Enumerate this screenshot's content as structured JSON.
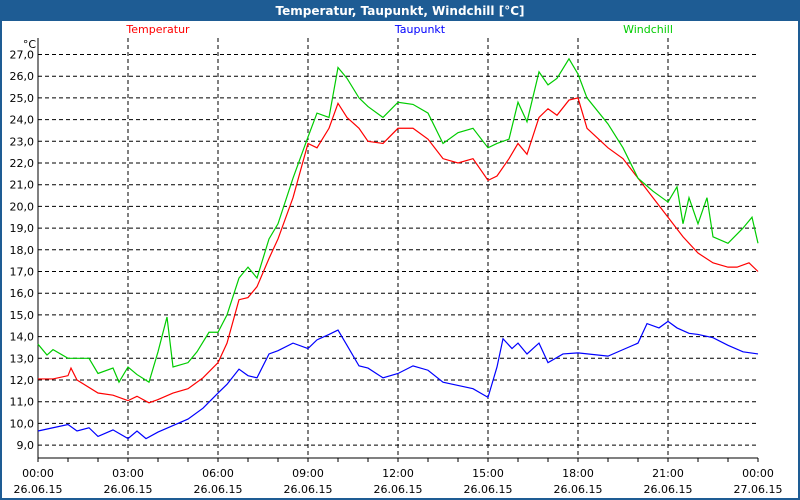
{
  "window_title": "Temperatur, Taupunkt, Windchill [°C]",
  "chart_data": {
    "type": "line",
    "title": "Temperatur, Taupunkt, Windchill [°C]",
    "ylabel": "°C",
    "ylim": [
      8.4,
      27.7
    ],
    "yticks": [
      9,
      10,
      11,
      12,
      13,
      14,
      15,
      16,
      17,
      18,
      19,
      20,
      21,
      22,
      23,
      24,
      25,
      26,
      27
    ],
    "ytick_labels": [
      "9,0",
      "10,0",
      "11,0",
      "12,0",
      "13,0",
      "14,0",
      "15,0",
      "16,0",
      "17,0",
      "18,0",
      "19,0",
      "20,0",
      "21,0",
      "22,0",
      "23,0",
      "24,0",
      "25,0",
      "26,0",
      "27,0"
    ],
    "xlim_hours": [
      0,
      24
    ],
    "xticks": [
      {
        "h": 0,
        "time": "00:00",
        "date": "26.06.15"
      },
      {
        "h": 3,
        "time": "03:00",
        "date": "26.06.15"
      },
      {
        "h": 6,
        "time": "06:00",
        "date": "26.06.15"
      },
      {
        "h": 9,
        "time": "09:00",
        "date": "26.06.15"
      },
      {
        "h": 12,
        "time": "12:00",
        "date": "26.06.15"
      },
      {
        "h": 15,
        "time": "15:00",
        "date": "26.06.15"
      },
      {
        "h": 18,
        "time": "18:00",
        "date": "26.06.15"
      },
      {
        "h": 21,
        "time": "21:00",
        "date": "26.06.15"
      },
      {
        "h": 24,
        "time": "00:00",
        "date": "27.06.15"
      }
    ],
    "grid": true,
    "legend_placement": "top",
    "series": [
      {
        "name": "Temperatur",
        "color": "#ff0000",
        "points": [
          [
            0,
            12.05
          ],
          [
            0.5,
            12.05
          ],
          [
            1,
            12.2
          ],
          [
            1.1,
            12.55
          ],
          [
            1.3,
            12.0
          ],
          [
            2,
            11.4
          ],
          [
            2.5,
            11.3
          ],
          [
            3,
            11.05
          ],
          [
            3.3,
            11.25
          ],
          [
            3.7,
            10.95
          ],
          [
            4,
            11.1
          ],
          [
            4.5,
            11.4
          ],
          [
            5,
            11.6
          ],
          [
            5.5,
            12.1
          ],
          [
            6,
            12.8
          ],
          [
            6.3,
            13.7
          ],
          [
            6.7,
            15.7
          ],
          [
            7,
            15.8
          ],
          [
            7.3,
            16.3
          ],
          [
            7.7,
            17.6
          ],
          [
            8,
            18.5
          ],
          [
            8.5,
            20.4
          ],
          [
            9,
            22.9
          ],
          [
            9.3,
            22.7
          ],
          [
            9.7,
            23.6
          ],
          [
            10,
            24.75
          ],
          [
            10.3,
            24.1
          ],
          [
            10.7,
            23.6
          ],
          [
            11,
            23.0
          ],
          [
            11.5,
            22.9
          ],
          [
            12,
            23.6
          ],
          [
            12.5,
            23.6
          ],
          [
            13,
            23.1
          ],
          [
            13.5,
            22.2
          ],
          [
            14,
            22.0
          ],
          [
            14.5,
            22.2
          ],
          [
            15,
            21.2
          ],
          [
            15.3,
            21.4
          ],
          [
            15.7,
            22.2
          ],
          [
            16,
            22.9
          ],
          [
            16.3,
            22.4
          ],
          [
            16.7,
            24.1
          ],
          [
            17,
            24.5
          ],
          [
            17.3,
            24.2
          ],
          [
            17.7,
            24.9
          ],
          [
            18,
            25.0
          ],
          [
            18.3,
            23.6
          ],
          [
            19,
            22.7
          ],
          [
            19.5,
            22.2
          ],
          [
            20,
            21.3
          ],
          [
            20.5,
            20.4
          ],
          [
            21,
            19.5
          ],
          [
            21.5,
            18.6
          ],
          [
            22,
            17.85
          ],
          [
            22.5,
            17.4
          ],
          [
            23,
            17.2
          ],
          [
            23.3,
            17.2
          ],
          [
            23.7,
            17.4
          ],
          [
            24,
            17.0
          ]
        ]
      },
      {
        "name": "Taupunkt",
        "color": "#0000ff",
        "points": [
          [
            0,
            9.65
          ],
          [
            0.5,
            9.8
          ],
          [
            1,
            9.95
          ],
          [
            1.3,
            9.65
          ],
          [
            1.7,
            9.8
          ],
          [
            2,
            9.4
          ],
          [
            2.5,
            9.7
          ],
          [
            3,
            9.3
          ],
          [
            3.3,
            9.65
          ],
          [
            3.6,
            9.3
          ],
          [
            4,
            9.6
          ],
          [
            4.5,
            9.9
          ],
          [
            5,
            10.2
          ],
          [
            5.5,
            10.7
          ],
          [
            6,
            11.4
          ],
          [
            6.3,
            11.8
          ],
          [
            6.7,
            12.5
          ],
          [
            7,
            12.2
          ],
          [
            7.3,
            12.1
          ],
          [
            7.7,
            13.2
          ],
          [
            8,
            13.35
          ],
          [
            8.5,
            13.7
          ],
          [
            9,
            13.45
          ],
          [
            9.3,
            13.85
          ],
          [
            9.7,
            14.1
          ],
          [
            10,
            14.3
          ],
          [
            10.3,
            13.6
          ],
          [
            10.7,
            12.65
          ],
          [
            11,
            12.55
          ],
          [
            11.5,
            12.1
          ],
          [
            12,
            12.3
          ],
          [
            12.5,
            12.65
          ],
          [
            13,
            12.45
          ],
          [
            13.5,
            11.9
          ],
          [
            14,
            11.75
          ],
          [
            14.5,
            11.6
          ],
          [
            15,
            11.2
          ],
          [
            15.3,
            12.6
          ],
          [
            15.5,
            13.9
          ],
          [
            15.8,
            13.45
          ],
          [
            16,
            13.7
          ],
          [
            16.3,
            13.2
          ],
          [
            16.7,
            13.7
          ],
          [
            17,
            12.8
          ],
          [
            17.5,
            13.2
          ],
          [
            18,
            13.25
          ],
          [
            19,
            13.1
          ],
          [
            19.5,
            13.4
          ],
          [
            20,
            13.7
          ],
          [
            20.3,
            14.6
          ],
          [
            20.7,
            14.4
          ],
          [
            21,
            14.7
          ],
          [
            21.3,
            14.4
          ],
          [
            21.7,
            14.15
          ],
          [
            22,
            14.1
          ],
          [
            22.5,
            13.95
          ],
          [
            23,
            13.6
          ],
          [
            23.5,
            13.3
          ],
          [
            24,
            13.2
          ]
        ]
      },
      {
        "name": "Windchill",
        "color": "#00cc00",
        "points": [
          [
            0,
            13.65
          ],
          [
            0.3,
            13.15
          ],
          [
            0.5,
            13.4
          ],
          [
            1,
            13.0
          ],
          [
            1.7,
            13.0
          ],
          [
            2,
            12.3
          ],
          [
            2.5,
            12.55
          ],
          [
            2.7,
            11.9
          ],
          [
            3,
            12.6
          ],
          [
            3.3,
            12.25
          ],
          [
            3.7,
            11.9
          ],
          [
            4,
            13.3
          ],
          [
            4.3,
            14.9
          ],
          [
            4.5,
            12.6
          ],
          [
            5,
            12.8
          ],
          [
            5.3,
            13.3
          ],
          [
            5.7,
            14.2
          ],
          [
            6,
            14.2
          ],
          [
            6.3,
            15.0
          ],
          [
            6.7,
            16.7
          ],
          [
            7,
            17.2
          ],
          [
            7.3,
            16.7
          ],
          [
            7.7,
            18.5
          ],
          [
            8,
            19.2
          ],
          [
            8.5,
            21.3
          ],
          [
            9,
            23.2
          ],
          [
            9.3,
            24.3
          ],
          [
            9.7,
            24.1
          ],
          [
            10,
            26.4
          ],
          [
            10.3,
            25.9
          ],
          [
            10.7,
            25.0
          ],
          [
            11,
            24.6
          ],
          [
            11.5,
            24.1
          ],
          [
            12,
            24.8
          ],
          [
            12.5,
            24.7
          ],
          [
            13,
            24.3
          ],
          [
            13.5,
            22.9
          ],
          [
            14,
            23.4
          ],
          [
            14.5,
            23.6
          ],
          [
            15,
            22.7
          ],
          [
            15.3,
            22.9
          ],
          [
            15.7,
            23.1
          ],
          [
            16,
            24.8
          ],
          [
            16.3,
            23.9
          ],
          [
            16.7,
            26.2
          ],
          [
            17,
            25.6
          ],
          [
            17.3,
            25.9
          ],
          [
            17.7,
            26.8
          ],
          [
            18,
            26.1
          ],
          [
            18.3,
            25.0
          ],
          [
            19,
            23.8
          ],
          [
            19.5,
            22.7
          ],
          [
            20,
            21.3
          ],
          [
            20.5,
            20.7
          ],
          [
            21,
            20.2
          ],
          [
            21.3,
            20.9
          ],
          [
            21.5,
            19.2
          ],
          [
            21.7,
            20.4
          ],
          [
            22,
            19.2
          ],
          [
            22.3,
            20.4
          ],
          [
            22.5,
            18.6
          ],
          [
            23,
            18.3
          ],
          [
            23.5,
            19.0
          ],
          [
            23.8,
            19.5
          ],
          [
            24,
            18.3
          ]
        ]
      }
    ]
  }
}
